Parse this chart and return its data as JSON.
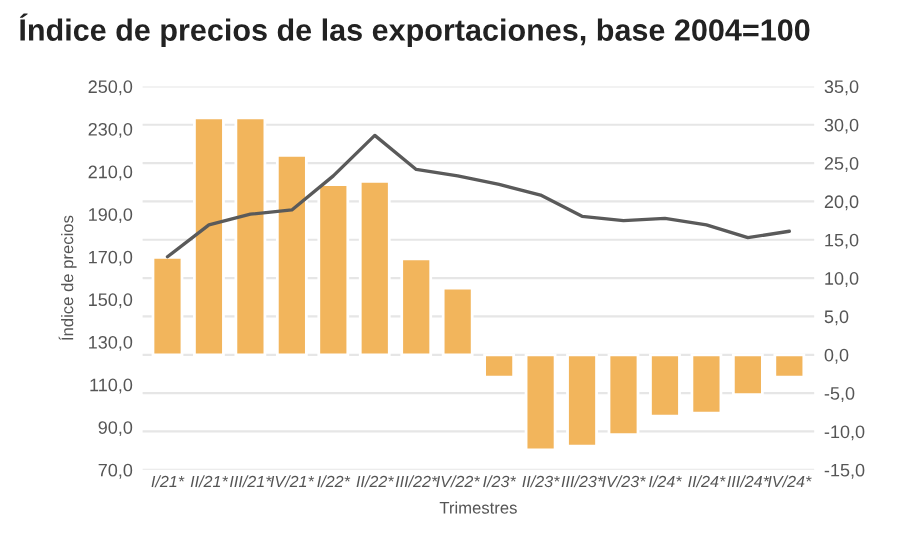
{
  "chart_data": {
    "type": "bar",
    "title": "Índice de precios de las exportaciones, base 2004=100",
    "xlabel": "Trimestres",
    "ylabel": "Índice de precios",
    "categories": [
      "I/21*",
      "II/21*",
      "III/21*",
      "IV/21*",
      "I/22*",
      "II/22*",
      "III/22*",
      "IV/22*",
      "I/23*",
      "II/23*",
      "III/23*",
      "IV/23*",
      "I/24*",
      "II/24*",
      "III/24*",
      "IV/24*"
    ],
    "series": [
      {
        "axis": "y2",
        "color": "#f2b55c",
        "values": [
          12.7,
          30.9,
          30.9,
          26.0,
          22.2,
          22.6,
          12.5,
          8.7,
          -2.9,
          -12.4,
          -11.9,
          -10.4,
          -8.0,
          -7.6,
          -5.2,
          -2.9
        ]
      },
      {
        "type": "line",
        "axis": "y",
        "color": "#5a5a5a",
        "values": [
          170,
          185,
          190,
          192,
          208,
          227,
          211,
          208,
          204,
          199,
          189,
          187,
          188,
          185,
          179,
          182
        ]
      }
    ],
    "ylim": [
      70,
      250
    ],
    "yticks": [
      {
        "value": 70,
        "label": "70,0"
      },
      {
        "value": 90,
        "label": "90,0"
      },
      {
        "value": 110,
        "label": "110,0"
      },
      {
        "value": 130,
        "label": "130,0"
      },
      {
        "value": 150,
        "label": "150,0"
      },
      {
        "value": 170,
        "label": "170,0"
      },
      {
        "value": 190,
        "label": "190,0"
      },
      {
        "value": 210,
        "label": "210,0"
      },
      {
        "value": 230,
        "label": "230,0"
      },
      {
        "value": 250,
        "label": "250,0"
      }
    ],
    "y2lim": [
      -15,
      35
    ],
    "y2ticks": [
      {
        "value": -15,
        "label": "-15,0"
      },
      {
        "value": -10,
        "label": "-10,0"
      },
      {
        "value": -5,
        "label": "-5,0"
      },
      {
        "value": 0,
        "label": "0,0"
      },
      {
        "value": 5,
        "label": "5,0"
      },
      {
        "value": 10,
        "label": "10,0"
      },
      {
        "value": 15,
        "label": "15,0"
      },
      {
        "value": 20,
        "label": "20,0"
      },
      {
        "value": 25,
        "label": "25,0"
      },
      {
        "value": 30,
        "label": "30,0"
      },
      {
        "value": 35,
        "label": "35,0"
      }
    ],
    "grid": "y",
    "marker": "none",
    "line_style": "solid"
  }
}
